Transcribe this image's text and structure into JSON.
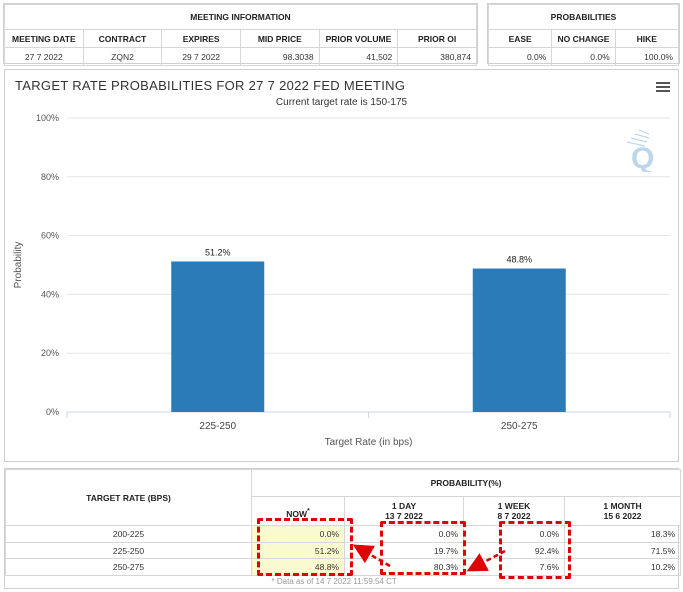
{
  "meeting_info": {
    "section_title": "MEETING INFORMATION",
    "headers": [
      "MEETING DATE",
      "CONTRACT",
      "EXPIRES",
      "MID PRICE",
      "PRIOR VOLUME",
      "PRIOR OI"
    ],
    "values": [
      "27 7 2022",
      "ZQN2",
      "29 7 2022",
      "98.3038",
      "41,502",
      "380,874"
    ]
  },
  "probabilities_box": {
    "section_title": "PROBABILITIES",
    "headers": [
      "EASE",
      "NO CHANGE",
      "HIKE"
    ],
    "values": [
      "0.0%",
      "0.0%",
      "100.0%"
    ]
  },
  "chart_panel": {
    "title": "TARGET RATE PROBABILITIES FOR 27 7 2022 FED MEETING",
    "subtitle": "Current target rate is 150-175",
    "logo_text": "Q",
    "menu_icon": "hamburger-menu-icon"
  },
  "chart_data": {
    "type": "bar",
    "categories": [
      "225-250",
      "250-275"
    ],
    "values": [
      51.2,
      48.8
    ],
    "value_labels": [
      "51.2%",
      "48.8%"
    ],
    "xlabel": "Target Rate (in bps)",
    "ylabel": "Probability",
    "ylim": [
      0,
      100
    ],
    "yticks": [
      "0%",
      "20%",
      "40%",
      "60%",
      "80%",
      "100%"
    ],
    "bar_color": "#2b7bb9",
    "grid": true
  },
  "prob_table": {
    "header_left": "TARGET RATE (BPS)",
    "header_group": "PROBABILITY(%)",
    "columns": [
      {
        "label": "NOW",
        "marker": "*",
        "date": ""
      },
      {
        "label": "1 DAY",
        "marker": "",
        "date": "13 7 2022"
      },
      {
        "label": "1 WEEK",
        "marker": "",
        "date": "8 7 2022"
      },
      {
        "label": "1 MONTH",
        "marker": "",
        "date": "15 6 2022"
      }
    ],
    "rows": [
      {
        "rate": "200-225",
        "cells": [
          "0.0%",
          "0.0%",
          "0.0%",
          "18.3%"
        ]
      },
      {
        "rate": "225-250",
        "cells": [
          "51.2%",
          "19.7%",
          "92.4%",
          "71.5%"
        ]
      },
      {
        "rate": "250-275",
        "cells": [
          "48.8%",
          "80.3%",
          "7.6%",
          "10.2%"
        ]
      }
    ],
    "footnote": "* Data as of 14 7 2022 11:59:54 CT",
    "highlight_color": "#fafad0",
    "annotation_color": "#e00000"
  }
}
